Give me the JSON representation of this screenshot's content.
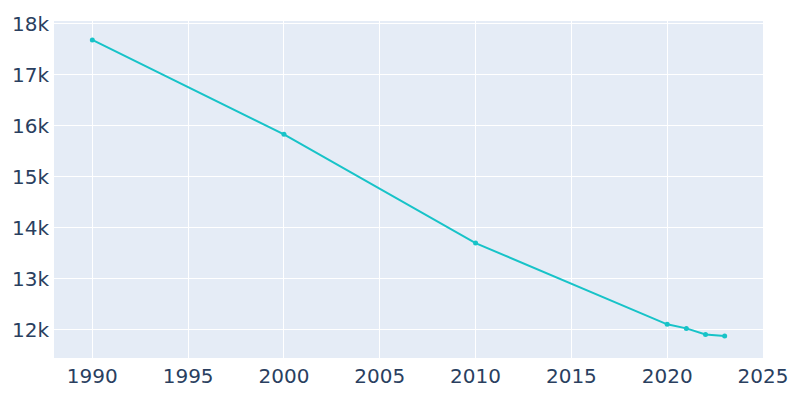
{
  "chart_data": {
    "type": "line",
    "x": [
      1990,
      2000,
      2010,
      2020,
      2021,
      2022,
      2023
    ],
    "values": [
      17680,
      15830,
      13700,
      12110,
      12030,
      11910,
      11880
    ],
    "color": "#17c3c8",
    "marker": "circle",
    "xlim": [
      1988,
      2025
    ],
    "xticks": [
      1990,
      1995,
      2000,
      2005,
      2010,
      2015,
      2020,
      2025
    ],
    "ylim": [
      11450,
      18050
    ],
    "yticks": [
      {
        "value": 12000,
        "label": "12k"
      },
      {
        "value": 13000,
        "label": "13k"
      },
      {
        "value": 14000,
        "label": "14k"
      },
      {
        "value": 15000,
        "label": "15k"
      },
      {
        "value": 16000,
        "label": "16k"
      },
      {
        "value": 17000,
        "label": "17k"
      },
      {
        "value": 18000,
        "label": "18k"
      }
    ],
    "grid": true
  }
}
